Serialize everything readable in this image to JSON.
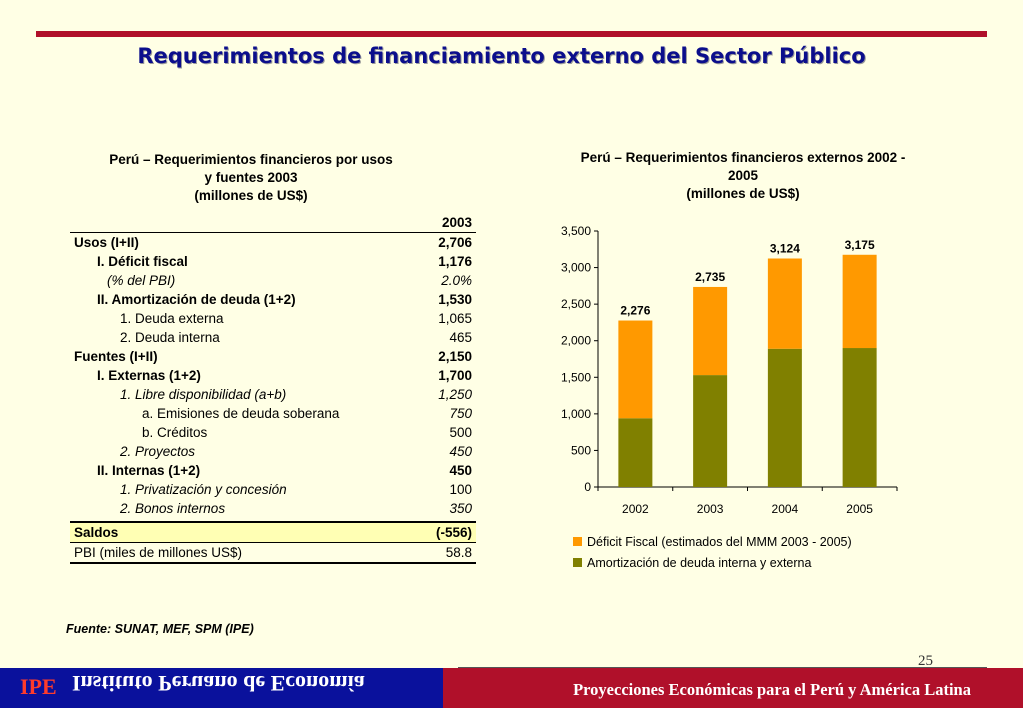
{
  "slide_title": "Requerimientos de financiamiento externo del Sector Público",
  "table_caption": [
    "Perú – Requerimientos financieros por usos",
    "y fuentes  2003",
    "(millones de US$)"
  ],
  "table": {
    "year_header": "2003",
    "rows": [
      {
        "label": "Usos (I+II)",
        "value": "2,706",
        "style": "b",
        "indent": 0
      },
      {
        "label": "I. Déficit fiscal",
        "value": "1,176",
        "style": "b",
        "indent": 1
      },
      {
        "label": "(% del PBI)",
        "value": "2.0%",
        "style": "i",
        "indent": 1.5
      },
      {
        "label": "II. Amortización de deuda (1+2)",
        "value": "1,530",
        "style": "b",
        "indent": 1
      },
      {
        "label": "1. Deuda externa",
        "value": "1,065",
        "style": "",
        "indent": 2
      },
      {
        "label": "2. Deuda interna",
        "value": "465",
        "style": "",
        "indent": 2
      },
      {
        "label": "Fuentes (I+II)",
        "value": "2,150",
        "style": "b",
        "indent": 0
      },
      {
        "label": "I. Externas (1+2)",
        "value": "1,700",
        "style": "b",
        "indent": 1
      },
      {
        "label": "1. Libre disponibilidad (a+b)",
        "value": "1,250",
        "style": "i",
        "indent": 2
      },
      {
        "label": "a. Emisiones de deuda soberana",
        "value": "750",
        "style": "i-val",
        "indent": 3
      },
      {
        "label": "b. Créditos",
        "value": "500",
        "style": "",
        "indent": 3
      },
      {
        "label": "2. Proyectos",
        "value": "450",
        "style": "i",
        "indent": 2
      },
      {
        "label": "II. Internas (1+2)",
        "value": "450",
        "style": "b",
        "indent": 1
      },
      {
        "label": "1. Privatización y concesión",
        "value": "100",
        "style": "i-lbl",
        "indent": 2
      },
      {
        "label": "2. Bonos internos",
        "value": "350",
        "style": "i",
        "indent": 2
      }
    ],
    "saldos": {
      "label": "Saldos",
      "value": "(-556)"
    },
    "pbi": {
      "label": "PBI (miles de millones US$)",
      "value": "58.8"
    }
  },
  "chart_caption": [
    "Perú – Requerimientos financieros externos 2002 -",
    "2005",
    "(millones de US$)"
  ],
  "chart_data": {
    "type": "bar",
    "stacked": true,
    "categories": [
      "2002",
      "2003",
      "2004",
      "2005"
    ],
    "series": [
      {
        "name": "Amortización de deuda interna y externa",
        "values": [
          940,
          1530,
          1890,
          1900
        ],
        "color": "#808000"
      },
      {
        "name": "Déficit Fiscal (estimados del MMM 2003 - 2005)",
        "values": [
          1336,
          1205,
          1234,
          1275
        ],
        "color": "#FF9900"
      }
    ],
    "totals": [
      "2,276",
      "2,735",
      "3,124",
      "3,175"
    ],
    "total_values": [
      2276,
      2735,
      3124,
      3175
    ],
    "y_ticks": [
      "0",
      "500",
      "1,000",
      "1,500",
      "2,000",
      "2,500",
      "3,000",
      "3,500"
    ],
    "ylim": [
      0,
      3500
    ],
    "legend_order": [
      "Déficit Fiscal (estimados del MMM 2003 - 2005)",
      "Amortización de deuda interna y externa"
    ],
    "grid": false,
    "legend_position": "bottom"
  },
  "source_note": "Fuente: SUNAT, MEF, SPM (IPE)",
  "page_number": "25",
  "footer": {
    "logo_text": "IPE",
    "institute_name": "Instituto Peruano de Economía",
    "tagline": "Proyecciones Económicas para el Perú y América Latina"
  },
  "colors": {
    "title": "#0B0E8C",
    "accent_red": "#B0102A",
    "footer_blue": "#0A119C",
    "background": "#FFFFE5",
    "highlight": "#FFFFB4"
  }
}
